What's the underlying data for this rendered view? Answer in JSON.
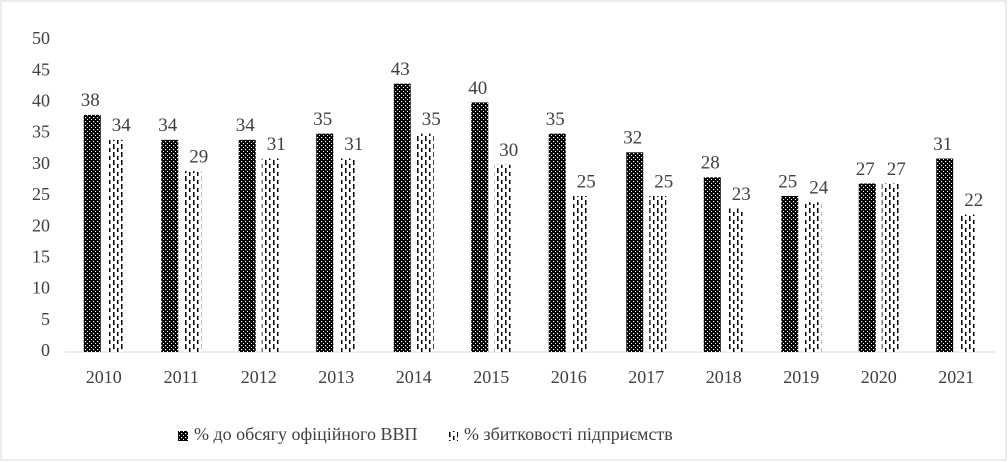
{
  "chart_data": {
    "type": "bar",
    "categories": [
      "2010",
      "2011",
      "2012",
      "2013",
      "2014",
      "2015",
      "2016",
      "2017",
      "2018",
      "2019",
      "2020",
      "2021"
    ],
    "series": [
      {
        "name": "% до обсягу офіційного ВВП",
        "color": "#000000",
        "values": [
          38,
          34,
          34,
          35,
          43,
          40,
          35,
          32,
          28,
          25,
          27,
          31
        ]
      },
      {
        "name": "% збитковості підприємств",
        "color": "#000000",
        "values": [
          34,
          29,
          31,
          31,
          35,
          30,
          25,
          25,
          23,
          24,
          27,
          22
        ]
      }
    ],
    "ylim": [
      0,
      50
    ],
    "yticks": [
      0,
      5,
      10,
      15,
      20,
      25,
      30,
      35,
      40,
      45,
      50
    ],
    "grid": false,
    "legend": "bottom"
  }
}
